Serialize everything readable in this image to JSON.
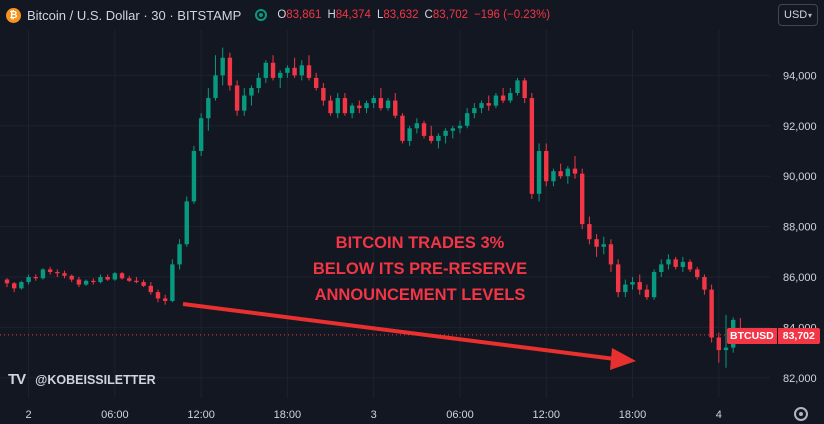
{
  "header": {
    "logo_char": "₿",
    "title": "Bitcoin / U.S. Dollar · 30 · BITSTAMP",
    "open_label": "O",
    "open": "83,861",
    "high_label": "H",
    "high": "84,374",
    "low_label": "L",
    "low": "83,632",
    "close_label": "C",
    "close": "83,702",
    "change": "−196 (−0.23%)"
  },
  "currency_button": {
    "label": "USD",
    "caret": "▾"
  },
  "annotation": [
    "BITCOIN TRADES 3%",
    "BELOW ITS PRE-RESERVE",
    "ANNOUNCEMENT LEVELS"
  ],
  "brand": {
    "logo": "TV",
    "handle": "@KOBEISSILETTER"
  },
  "price_tag": {
    "symbol": "BTCUSD",
    "value": "83,702"
  },
  "colors": {
    "up": "#089981",
    "down": "#f23645",
    "background": "#131722",
    "grid": "#1e222d",
    "text": "#d1d4dc",
    "arrow": "#e8302f"
  },
  "chart_data": {
    "type": "candlestick",
    "ylim": [
      81200,
      95800
    ],
    "y_ticks": [
      82000,
      84000,
      86000,
      88000,
      90000,
      92000,
      94000
    ],
    "y_tick_labels": [
      "82,000",
      "84,000",
      "86,000",
      "88,000",
      "90,000",
      "92,000",
      "94,000"
    ],
    "x_ticks": [
      {
        "i": 3,
        "label": "2"
      },
      {
        "i": 15,
        "label": "06:00"
      },
      {
        "i": 27,
        "label": "12:00"
      },
      {
        "i": 39,
        "label": "18:00"
      },
      {
        "i": 51,
        "label": "3"
      },
      {
        "i": 63,
        "label": "06:00"
      },
      {
        "i": 75,
        "label": "12:00"
      },
      {
        "i": 87,
        "label": "18:00"
      },
      {
        "i": 99,
        "label": "4"
      }
    ],
    "last_price": 83702,
    "candles": [
      [
        85900,
        85950,
        85600,
        85750
      ],
      [
        85750,
        85800,
        85400,
        85550
      ],
      [
        85550,
        85850,
        85500,
        85800
      ],
      [
        85800,
        86100,
        85700,
        86000
      ],
      [
        86000,
        86100,
        85850,
        85950
      ],
      [
        85950,
        86350,
        85900,
        86300
      ],
      [
        86300,
        86400,
        86100,
        86200
      ],
      [
        86200,
        86300,
        86000,
        86150
      ],
      [
        86150,
        86250,
        85950,
        86050
      ],
      [
        86050,
        86100,
        85800,
        85900
      ],
      [
        85900,
        86000,
        85600,
        85700
      ],
      [
        85700,
        85900,
        85650,
        85850
      ],
      [
        85850,
        85950,
        85700,
        85800
      ],
      [
        85800,
        86100,
        85750,
        86000
      ],
      [
        86000,
        86100,
        85850,
        85900
      ],
      [
        85900,
        86200,
        85850,
        86150
      ],
      [
        86150,
        86200,
        85900,
        85950
      ],
      [
        85950,
        86050,
        85800,
        85850
      ],
      [
        85850,
        86000,
        85750,
        85800
      ],
      [
        85800,
        85900,
        85600,
        85650
      ],
      [
        85650,
        85800,
        85300,
        85400
      ],
      [
        85400,
        85500,
        85000,
        85150
      ],
      [
        85150,
        85300,
        84900,
        85050
      ],
      [
        85050,
        86700,
        85000,
        86500
      ],
      [
        86500,
        87500,
        86300,
        87300
      ],
      [
        87300,
        89200,
        87200,
        89000
      ],
      [
        89000,
        91200,
        88900,
        91000
      ],
      [
        91000,
        92500,
        90800,
        92300
      ],
      [
        92300,
        93500,
        91800,
        93100
      ],
      [
        93100,
        94800,
        93000,
        94000
      ],
      [
        94000,
        95100,
        93600,
        94700
      ],
      [
        94700,
        94900,
        93400,
        93600
      ],
      [
        93600,
        93800,
        92400,
        92600
      ],
      [
        92600,
        93500,
        92400,
        93200
      ],
      [
        93200,
        93600,
        92800,
        93500
      ],
      [
        93500,
        94100,
        93300,
        93900
      ],
      [
        93900,
        94600,
        93700,
        94500
      ],
      [
        94500,
        94800,
        93800,
        93900
      ],
      [
        93900,
        94200,
        93500,
        94100
      ],
      [
        94100,
        94400,
        93900,
        94300
      ],
      [
        94300,
        94700,
        93900,
        94000
      ],
      [
        94000,
        94600,
        93800,
        94400
      ],
      [
        94400,
        94800,
        93800,
        93900
      ],
      [
        93900,
        94100,
        93400,
        93500
      ],
      [
        93500,
        93700,
        92800,
        93000
      ],
      [
        93000,
        93200,
        92400,
        92500
      ],
      [
        92500,
        93300,
        92300,
        93100
      ],
      [
        93100,
        93300,
        92400,
        92500
      ],
      [
        92500,
        92900,
        92300,
        92800
      ],
      [
        92800,
        93000,
        92500,
        92700
      ],
      [
        92700,
        93000,
        92500,
        92900
      ],
      [
        92900,
        93200,
        92700,
        93100
      ],
      [
        93100,
        93500,
        92600,
        92700
      ],
      [
        92700,
        93100,
        92600,
        93000
      ],
      [
        93000,
        93300,
        92300,
        92400
      ],
      [
        92400,
        92500,
        91300,
        91400
      ],
      [
        91400,
        92000,
        91200,
        91900
      ],
      [
        91900,
        92300,
        91700,
        92100
      ],
      [
        92100,
        92200,
        91500,
        91600
      ],
      [
        91600,
        92000,
        91300,
        91400
      ],
      [
        91400,
        91700,
        91100,
        91600
      ],
      [
        91600,
        91900,
        91300,
        91800
      ],
      [
        91800,
        92000,
        91500,
        91900
      ],
      [
        91900,
        92200,
        91700,
        92000
      ],
      [
        92000,
        92700,
        91900,
        92500
      ],
      [
        92500,
        92900,
        92300,
        92700
      ],
      [
        92700,
        93000,
        92500,
        92900
      ],
      [
        92900,
        93200,
        92600,
        92800
      ],
      [
        92800,
        93300,
        92700,
        93200
      ],
      [
        93200,
        93500,
        92900,
        93000
      ],
      [
        93000,
        93500,
        92900,
        93300
      ],
      [
        93300,
        93900,
        93200,
        93800
      ],
      [
        93800,
        93900,
        92900,
        93100
      ],
      [
        93100,
        93300,
        89100,
        89300
      ],
      [
        89300,
        91300,
        89000,
        91000
      ],
      [
        91000,
        91300,
        89600,
        89800
      ],
      [
        89800,
        90300,
        89600,
        90200
      ],
      [
        90200,
        90500,
        89900,
        90000
      ],
      [
        90000,
        90400,
        89700,
        90300
      ],
      [
        90300,
        90800,
        89900,
        90100
      ],
      [
        90100,
        90300,
        87900,
        88100
      ],
      [
        88100,
        88400,
        87300,
        87500
      ],
      [
        87500,
        87700,
        86800,
        87200
      ],
      [
        87200,
        87600,
        86900,
        87300
      ],
      [
        87300,
        87500,
        86200,
        86500
      ],
      [
        86500,
        86700,
        85200,
        85400
      ],
      [
        85400,
        85900,
        85200,
        85700
      ],
      [
        85700,
        86000,
        85500,
        85800
      ],
      [
        85800,
        86100,
        85300,
        85500
      ],
      [
        85500,
        85700,
        85100,
        85200
      ],
      [
        85200,
        86300,
        85100,
        86200
      ],
      [
        86200,
        86700,
        86000,
        86500
      ],
      [
        86500,
        86900,
        86300,
        86700
      ],
      [
        86700,
        86800,
        86300,
        86400
      ],
      [
        86400,
        86800,
        86200,
        86600
      ],
      [
        86600,
        86700,
        86200,
        86300
      ],
      [
        86300,
        86400,
        85900,
        86000
      ],
      [
        86000,
        86100,
        85300,
        85500
      ],
      [
        85500,
        85700,
        83400,
        83600
      ],
      [
        83600,
        83800,
        82600,
        83100
      ],
      [
        83100,
        84500,
        82400,
        83200
      ],
      [
        83200,
        84400,
        83000,
        84300
      ],
      [
        83861,
        84374,
        83632,
        83702
      ]
    ]
  }
}
